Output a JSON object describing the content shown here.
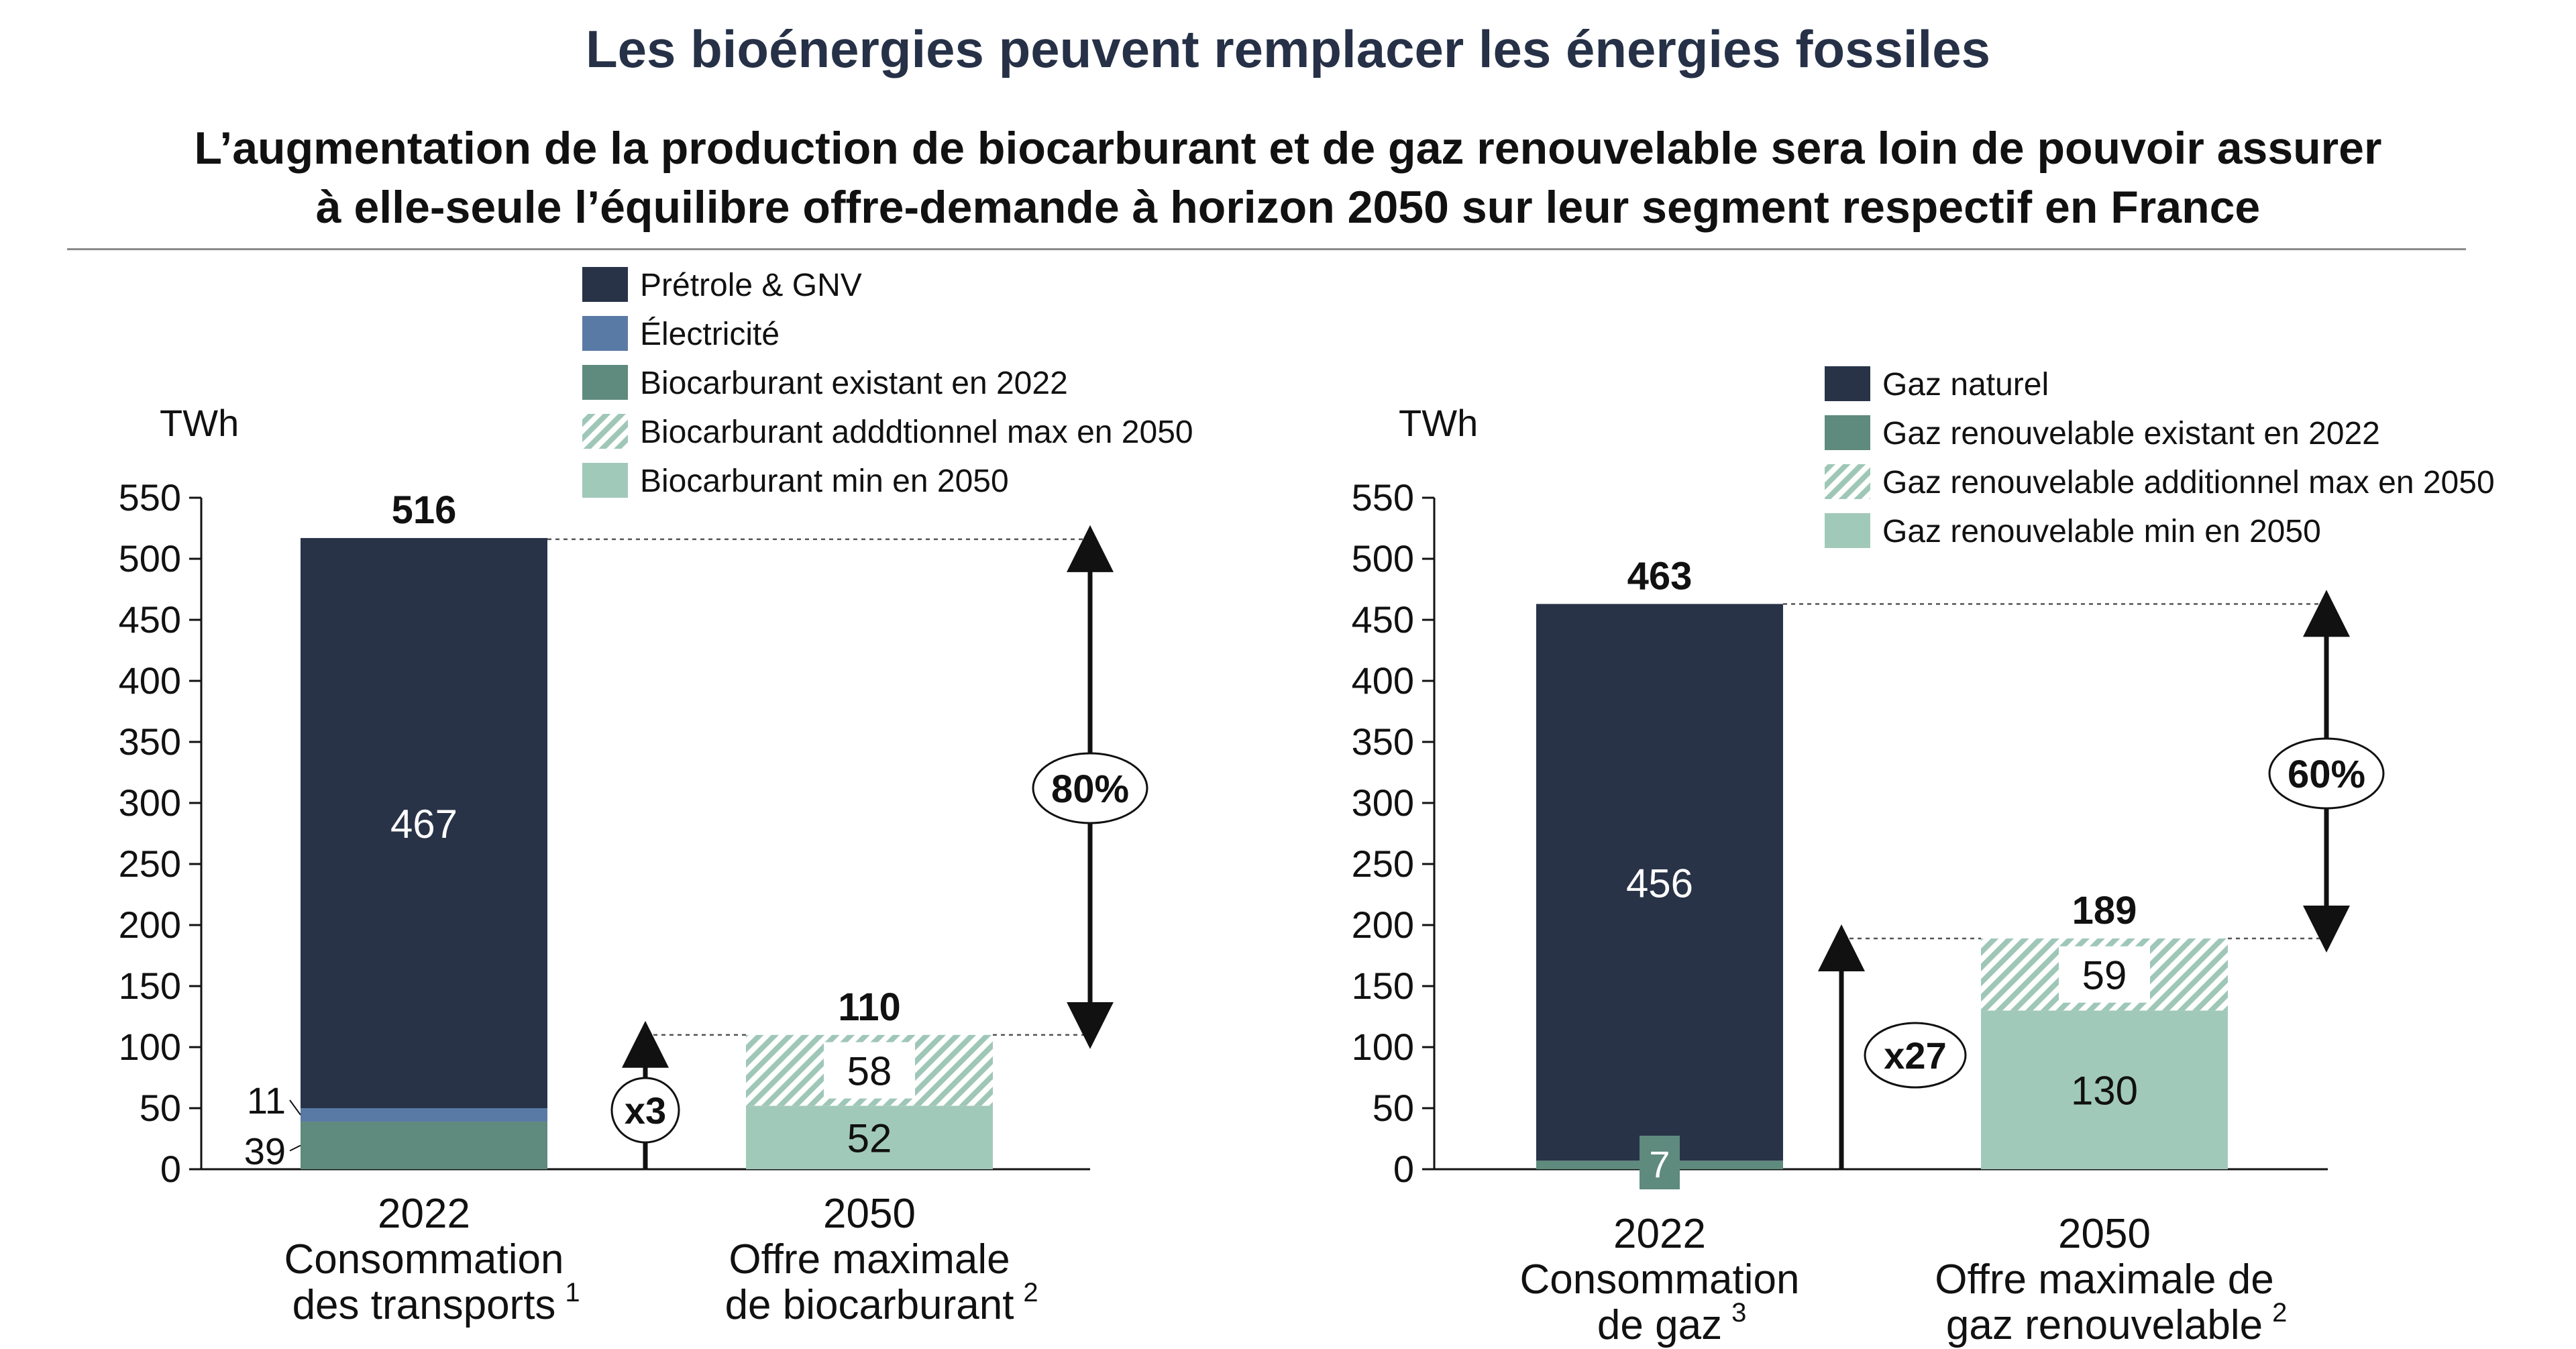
{
  "title": "Les bioénergies peuvent remplacer les énergies fossiles",
  "subtitle_line1": "L’augmentation de la production de biocarburant et de gaz renouvelable sera loin de pouvoir assurer",
  "subtitle_line2": "à elle-seule l’équilibre offre-demande à horizon 2050 sur leur segment respectif en France",
  "colors": {
    "title": "#263147",
    "fossil": "#283347",
    "electricity": "#5a7aa6",
    "existing_renewable": "#5f8a7e",
    "additional_max_hatch": "#9fc7b8",
    "min_2050": "#a1c9b9",
    "text": "#111111",
    "dashed": "#555555"
  },
  "chart_data": [
    {
      "type": "bar",
      "stacked": true,
      "ylabel": "TWh",
      "ylim": [
        0,
        550
      ],
      "yticks": [
        0,
        50,
        100,
        150,
        200,
        250,
        300,
        350,
        400,
        450,
        500,
        550
      ],
      "categories": [
        [
          "2022",
          "Consommation",
          "des transports"
        ],
        [
          "2050",
          "Offre maximale",
          "de biocarburant"
        ]
      ],
      "category_footnotes": [
        "1",
        "2"
      ],
      "legend": [
        {
          "label": "Prétrole & GNV",
          "style": "fossil"
        },
        {
          "label": "Électricité",
          "style": "electricity"
        },
        {
          "label": "Biocarburant existant en 2022",
          "style": "existing_renewable"
        },
        {
          "label": "Biocarburant adddtionnel max en 2050",
          "style": "hatch"
        },
        {
          "label": "Biocarburant min en 2050",
          "style": "min_2050"
        }
      ],
      "series": [
        {
          "name": "Biocarburant existant en 2022",
          "style": "existing_renewable",
          "values": [
            39,
            0
          ]
        },
        {
          "name": "Électricité",
          "style": "electricity",
          "values": [
            11,
            0
          ]
        },
        {
          "name": "Prétrole & GNV",
          "style": "fossil",
          "values": [
            467,
            0
          ]
        },
        {
          "name": "Biocarburant min en 2050",
          "style": "min_2050",
          "values": [
            0,
            52
          ]
        },
        {
          "name": "Biocarburant adddtionnel max en 2050",
          "style": "hatch",
          "values": [
            0,
            58
          ]
        }
      ],
      "segment_labels": [
        {
          "series": 2,
          "category": 0,
          "text": "467",
          "position": "inside",
          "color": "#ffffff"
        },
        {
          "series": 1,
          "category": 0,
          "text": "11",
          "position": "left-leader"
        },
        {
          "series": 0,
          "category": 0,
          "text": "39",
          "position": "left-leader"
        },
        {
          "series": 3,
          "category": 1,
          "text": "52",
          "position": "inside",
          "color": "#111111"
        },
        {
          "series": 4,
          "category": 1,
          "text": "58",
          "position": "inside-box",
          "color": "#111111"
        }
      ],
      "totals": [
        "516",
        "110"
      ],
      "multiplier": {
        "label": "x3",
        "from": 0,
        "to": 110
      },
      "gap": {
        "label": "80%",
        "from": 110,
        "to": 516
      }
    },
    {
      "type": "bar",
      "stacked": true,
      "ylabel": "TWh",
      "ylim": [
        0,
        550
      ],
      "yticks": [
        0,
        50,
        100,
        150,
        200,
        250,
        300,
        350,
        400,
        450,
        500,
        550
      ],
      "categories": [
        [
          "2022",
          "Consommation",
          "de gaz"
        ],
        [
          "2050",
          "Offre maximale de",
          "gaz renouvelable"
        ]
      ],
      "category_footnotes": [
        "3",
        "2"
      ],
      "legend": [
        {
          "label": "Gaz naturel",
          "style": "fossil"
        },
        {
          "label": "Gaz renouvelable existant en 2022",
          "style": "existing_renewable"
        },
        {
          "label": "Gaz renouvelable additionnel max en 2050",
          "style": "hatch"
        },
        {
          "label": "Gaz renouvelable min en 2050",
          "style": "min_2050"
        }
      ],
      "series": [
        {
          "name": "Gaz renouvelable existant en 2022",
          "style": "existing_renewable",
          "values": [
            7,
            0
          ]
        },
        {
          "name": "Gaz naturel",
          "style": "fossil",
          "values": [
            456,
            0
          ]
        },
        {
          "name": "Gaz renouvelable min en 2050",
          "style": "min_2050",
          "values": [
            0,
            130
          ]
        },
        {
          "name": "Gaz renouvelable additionnel max en 2050",
          "style": "hatch",
          "values": [
            0,
            59
          ]
        }
      ],
      "segment_labels": [
        {
          "series": 1,
          "category": 0,
          "text": "456",
          "position": "inside",
          "color": "#ffffff"
        },
        {
          "series": 0,
          "category": 0,
          "text": "7",
          "position": "badge",
          "color": "#ffffff"
        },
        {
          "series": 2,
          "category": 1,
          "text": "130",
          "position": "inside",
          "color": "#111111"
        },
        {
          "series": 3,
          "category": 1,
          "text": "59",
          "position": "inside-box",
          "color": "#111111"
        }
      ],
      "totals": [
        "463",
        "189"
      ],
      "multiplier": {
        "label": "x27",
        "from": 0,
        "to": 189
      },
      "gap": {
        "label": "60%",
        "from": 189,
        "to": 463
      }
    }
  ]
}
